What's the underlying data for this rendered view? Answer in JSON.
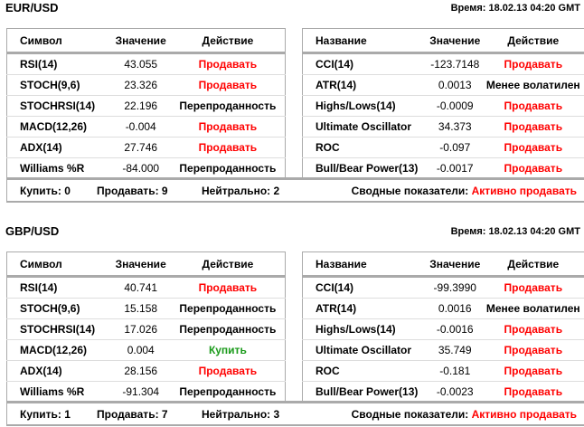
{
  "sections": [
    {
      "pair": "EUR/USD",
      "time": "Время: 18.02.13 04:20 GMT",
      "left_headers": [
        "Символ",
        "Значение",
        "Действие"
      ],
      "left_rows": [
        [
          "RSI(14)",
          "43.055",
          "Продавать",
          "sell"
        ],
        [
          "STOCH(9,6)",
          "23.326",
          "Продавать",
          "sell"
        ],
        [
          "STOCHRSI(14)",
          "22.196",
          "Перепроданность",
          "neutral"
        ],
        [
          "MACD(12,26)",
          "-0.004",
          "Продавать",
          "sell"
        ],
        [
          "ADX(14)",
          "27.746",
          "Продавать",
          "sell"
        ],
        [
          "Williams %R",
          "-84.000",
          "Перепроданность",
          "neutral"
        ]
      ],
      "right_headers": [
        "Название",
        "Значение",
        "Действие"
      ],
      "right_rows": [
        [
          "CCI(14)",
          "-123.7148",
          "Продавать",
          "sell"
        ],
        [
          "ATR(14)",
          "0.0013",
          "Менее волатилен",
          "neutral"
        ],
        [
          "Highs/Lows(14)",
          "-0.0009",
          "Продавать",
          "sell"
        ],
        [
          "Ultimate Oscillator",
          "34.373",
          "Продавать",
          "sell"
        ],
        [
          "ROC",
          "-0.097",
          "Продавать",
          "sell"
        ],
        [
          "Bull/Bear Power(13)",
          "-0.0017",
          "Продавать",
          "sell"
        ]
      ],
      "buy": "Купить: 0",
      "sell": "Продавать: 9",
      "neutral": "Нейтрально: 2",
      "summary_label": "Сводные показатели:",
      "summary_value": "Активно продавать"
    },
    {
      "pair": "GBP/USD",
      "time": "Время: 18.02.13 04:20 GMT",
      "left_headers": [
        "Символ",
        "Значение",
        "Действие"
      ],
      "left_rows": [
        [
          "RSI(14)",
          "40.741",
          "Продавать",
          "sell"
        ],
        [
          "STOCH(9,6)",
          "15.158",
          "Перепроданность",
          "neutral"
        ],
        [
          "STOCHRSI(14)",
          "17.026",
          "Перепроданность",
          "neutral"
        ],
        [
          "MACD(12,26)",
          "0.004",
          "Купить",
          "buy"
        ],
        [
          "ADX(14)",
          "28.156",
          "Продавать",
          "sell"
        ],
        [
          "Williams %R",
          "-91.304",
          "Перепроданность",
          "neutral"
        ]
      ],
      "right_headers": [
        "Название",
        "Значение",
        "Действие"
      ],
      "right_rows": [
        [
          "CCI(14)",
          "-99.3990",
          "Продавать",
          "sell"
        ],
        [
          "ATR(14)",
          "0.0016",
          "Менее волатилен",
          "neutral"
        ],
        [
          "Highs/Lows(14)",
          "-0.0016",
          "Продавать",
          "sell"
        ],
        [
          "Ultimate Oscillator",
          "35.749",
          "Продавать",
          "sell"
        ],
        [
          "ROC",
          "-0.181",
          "Продавать",
          "sell"
        ],
        [
          "Bull/Bear Power(13)",
          "-0.0023",
          "Продавать",
          "sell"
        ]
      ],
      "buy": "Купить: 1",
      "sell": "Продавать: 7",
      "neutral": "Нейтрально: 3",
      "summary_label": "Сводные показатели:",
      "summary_value": "Активно продавать"
    }
  ],
  "colors": {
    "sell": "#ff0000",
    "buy": "#1a9a1a",
    "border": "#aaaaaa"
  }
}
